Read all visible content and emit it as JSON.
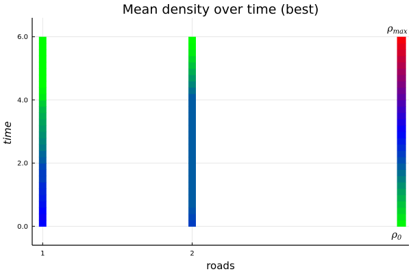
{
  "chart_data": {
    "type": "heatmap",
    "title": "Mean density over time (best)",
    "xlabel": "roads",
    "ylabel": "time",
    "x_ticks": [
      "1",
      "2"
    ],
    "y_ticks": [
      "0.0",
      "2.0",
      "4.0",
      "6.0"
    ],
    "ylim": [
      -0.6,
      6.6
    ],
    "xlim": [
      0.93,
      3.45
    ],
    "grid": true,
    "time_steps": [
      0.0,
      0.2,
      0.4,
      0.6,
      0.8,
      1.0,
      1.2,
      1.4,
      1.6,
      1.8,
      2.0,
      2.2,
      2.4,
      2.6,
      2.8,
      3.0,
      3.2,
      3.4,
      3.6,
      3.8,
      4.0,
      4.2,
      4.4,
      4.6,
      4.8,
      5.0,
      5.2,
      5.4,
      5.6,
      5.8
    ],
    "series": [
      {
        "name": "1",
        "x": 1,
        "values": [
          0.5,
          0.52,
          0.5,
          0.47,
          0.45,
          0.43,
          0.42,
          0.38,
          0.38,
          0.36,
          0.32,
          0.3,
          0.26,
          0.24,
          0.22,
          0.2,
          0.18,
          0.16,
          0.14,
          0.1,
          0.04,
          0.02,
          0,
          0,
          0,
          0,
          0,
          0,
          0,
          0
        ]
      },
      {
        "name": "2",
        "x": 2,
        "values": [
          0.38,
          0.36,
          0.34,
          0.32,
          0.32,
          0.32,
          0.32,
          0.32,
          0.32,
          0.32,
          0.32,
          0.32,
          0.32,
          0.32,
          0.32,
          0.32,
          0.32,
          0.32,
          0.32,
          0.32,
          0.32,
          0.28,
          0.24,
          0.2,
          0.16,
          0.12,
          0.08,
          0.04,
          0.01,
          0
        ]
      }
    ],
    "colorbar": {
      "x": 3.4,
      "min_label": "ρ0",
      "max_label": "ρmax",
      "colors": [
        "#00ff00",
        "#0000ff",
        "#ff0000"
      ]
    }
  }
}
